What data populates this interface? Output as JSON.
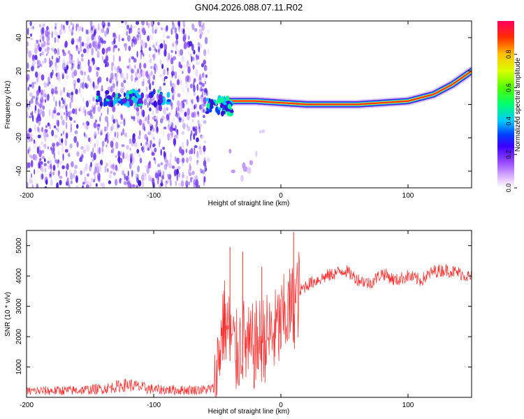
{
  "title": "GN04.2026.088.07.11.R02",
  "colors": {
    "line": "#ff2a2a",
    "axis": "#000000",
    "background": "#ffffff"
  },
  "chart_data": [
    {
      "type": "heatmap",
      "title": "GN04.2026.088.07.11.R02",
      "xlabel": "Height of straight line (km)",
      "ylabel": "Frequency (Hz)",
      "xlim": [
        -200,
        150
      ],
      "ylim": [
        -50,
        50
      ],
      "xticks": [
        -200,
        -100,
        0,
        100
      ],
      "yticks": [
        -40,
        -20,
        0,
        20,
        40
      ],
      "ridge": {
        "description_points": [
          {
            "x": -140,
            "y": 4
          },
          {
            "x": -100,
            "y": 5
          },
          {
            "x": -55,
            "y": -3
          },
          {
            "x": -40,
            "y": 2
          },
          {
            "x": -20,
            "y": 2
          },
          {
            "x": 0,
            "y": 1
          },
          {
            "x": 20,
            "y": 0
          },
          {
            "x": 60,
            "y": 0
          },
          {
            "x": 80,
            "y": 1
          },
          {
            "x": 100,
            "y": 2
          },
          {
            "x": 120,
            "y": 6
          },
          {
            "x": 135,
            "y": 12
          },
          {
            "x": 150,
            "y": 20
          }
        ]
      },
      "noise_region_x": [
        -200,
        -57
      ],
      "colorbar": {
        "label": "Normalized spectral amplitude",
        "range": [
          0.0,
          1.0
        ],
        "ticks": [
          "0.0",
          "0.2",
          "0.4",
          "0.6",
          "0.8"
        ]
      }
    },
    {
      "type": "line",
      "title": "",
      "xlabel": "Height of straight line (km)",
      "ylabel": "SNR (10 * v/v)",
      "xlim": [
        -200,
        150
      ],
      "ylim": [
        0,
        5500
      ],
      "xticks": [
        -200,
        -100,
        0,
        100
      ],
      "yticks": [
        1000,
        2000,
        3000,
        4000,
        5000
      ],
      "series": [
        {
          "name": "SNR",
          "x": [
            -200,
            -180,
            -160,
            -140,
            -130,
            -120,
            -110,
            -100,
            -80,
            -60,
            -52,
            -45,
            -40,
            -35,
            -30,
            -25,
            -20,
            -15,
            -10,
            -5,
            0,
            5,
            10,
            15,
            20,
            30,
            40,
            50,
            60,
            70,
            80,
            90,
            100,
            110,
            120,
            130,
            140,
            150
          ],
          "values": [
            200,
            220,
            230,
            280,
            350,
            420,
            330,
            260,
            240,
            250,
            300,
            2600,
            2000,
            1400,
            1900,
            1500,
            1700,
            1900,
            2000,
            2100,
            2400,
            2800,
            3000,
            3500,
            3700,
            3900,
            4050,
            4200,
            3900,
            3750,
            4100,
            3850,
            4000,
            3850,
            4150,
            4200,
            4100,
            3950
          ],
          "spikes": [
            {
              "x": -40,
              "value": 4950
            },
            {
              "x": -30,
              "value": 4800
            },
            {
              "x": -15,
              "value": 4300
            },
            {
              "x": 10,
              "value": 5450
            }
          ]
        }
      ]
    }
  ]
}
